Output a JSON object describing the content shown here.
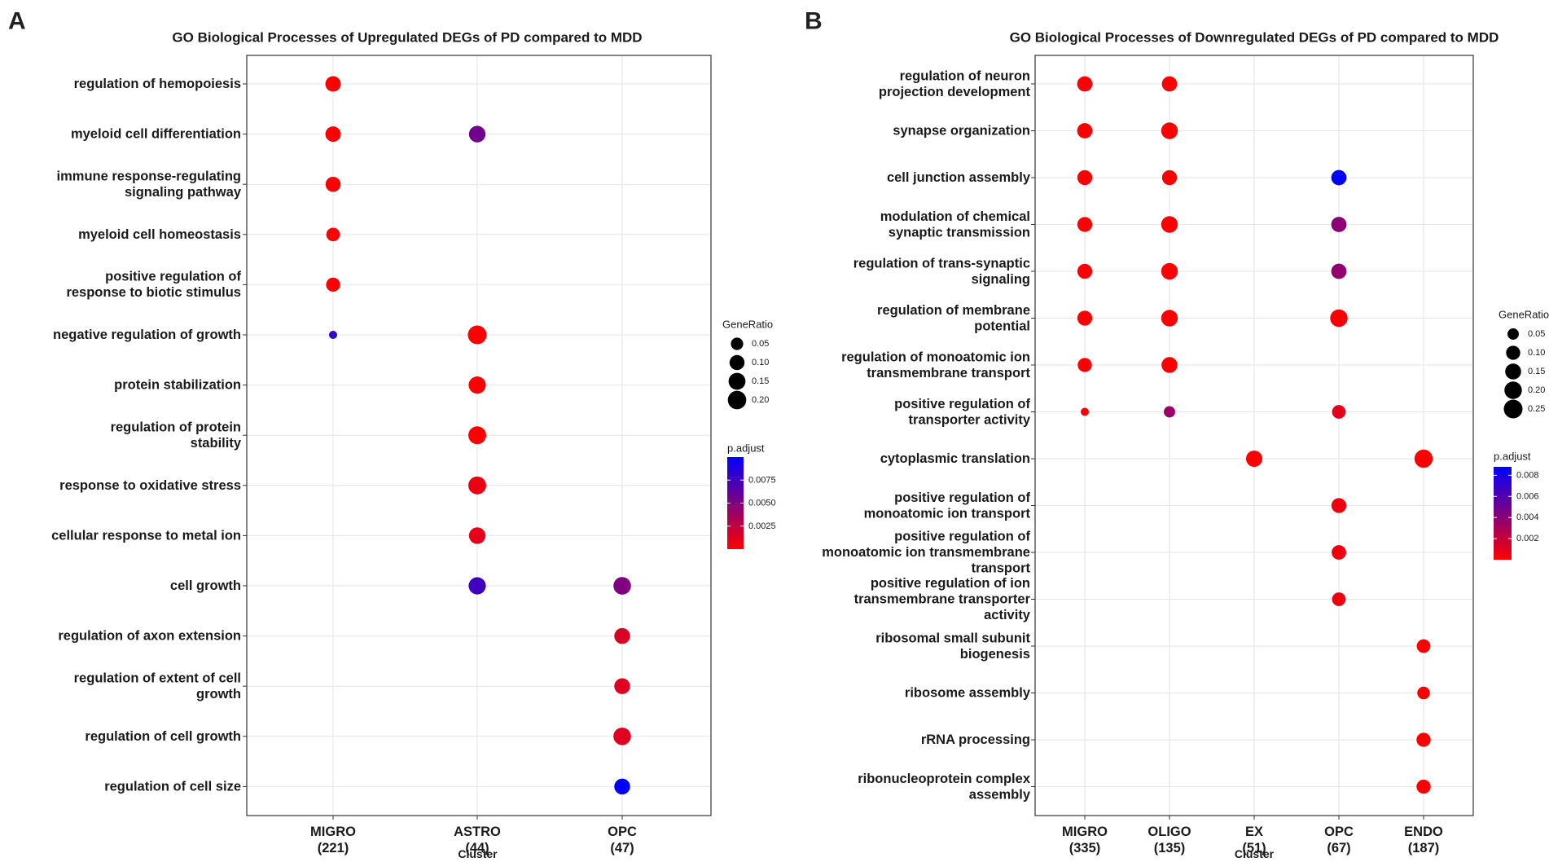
{
  "chart_data": [
    {
      "panel_label": "A",
      "type": "scatter",
      "subtype": "dotplot",
      "title": "GO Biological Processes of Upregulated DEGs of PD compared to MDD",
      "xlabel": "Cluster",
      "ylabel": "",
      "clusters": [
        {
          "name": "MIGRO",
          "count": "(221)"
        },
        {
          "name": "ASTRO",
          "count": "(44)"
        },
        {
          "name": "OPC",
          "count": "(47)"
        }
      ],
      "terms": [
        [
          "regulation of hemopoiesis"
        ],
        [
          "myeloid cell differentiation"
        ],
        [
          "immune response-regulating",
          "signaling pathway"
        ],
        [
          "myeloid cell homeostasis"
        ],
        [
          "positive regulation of",
          "response to biotic stimulus"
        ],
        [
          "negative regulation of growth"
        ],
        [
          "protein stabilization"
        ],
        [
          "regulation of protein",
          "stability"
        ],
        [
          "response to oxidative stress"
        ],
        [
          "cellular response to metal ion"
        ],
        [
          "cell growth"
        ],
        [
          "regulation of axon extension"
        ],
        [
          "regulation of extent of cell",
          "growth"
        ],
        [
          "regulation of cell growth"
        ],
        [
          "regulation of cell size"
        ]
      ],
      "points": [
        {
          "term": 0,
          "cluster": 0,
          "gene_ratio": 0.11,
          "p_adjust": 0.0001
        },
        {
          "term": 1,
          "cluster": 0,
          "gene_ratio": 0.11,
          "p_adjust": 0.0001
        },
        {
          "term": 1,
          "cluster": 1,
          "gene_ratio": 0.14,
          "p_adjust": 0.0055
        },
        {
          "term": 2,
          "cluster": 0,
          "gene_ratio": 0.1,
          "p_adjust": 0.0001
        },
        {
          "term": 3,
          "cluster": 0,
          "gene_ratio": 0.07,
          "p_adjust": 0.0001
        },
        {
          "term": 4,
          "cluster": 0,
          "gene_ratio": 0.08,
          "p_adjust": 0.0001
        },
        {
          "term": 5,
          "cluster": 0,
          "gene_ratio": 0.02,
          "p_adjust": 0.008
        },
        {
          "term": 5,
          "cluster": 1,
          "gene_ratio": 0.21,
          "p_adjust": 0.0001
        },
        {
          "term": 6,
          "cluster": 1,
          "gene_ratio": 0.16,
          "p_adjust": 0.0001
        },
        {
          "term": 7,
          "cluster": 1,
          "gene_ratio": 0.18,
          "p_adjust": 0.0001
        },
        {
          "term": 8,
          "cluster": 1,
          "gene_ratio": 0.18,
          "p_adjust": 0.0008
        },
        {
          "term": 9,
          "cluster": 1,
          "gene_ratio": 0.14,
          "p_adjust": 0.001
        },
        {
          "term": 10,
          "cluster": 1,
          "gene_ratio": 0.16,
          "p_adjust": 0.0075
        },
        {
          "term": 10,
          "cluster": 2,
          "gene_ratio": 0.17,
          "p_adjust": 0.005
        },
        {
          "term": 11,
          "cluster": 2,
          "gene_ratio": 0.12,
          "p_adjust": 0.0015
        },
        {
          "term": 12,
          "cluster": 2,
          "gene_ratio": 0.12,
          "p_adjust": 0.0012
        },
        {
          "term": 13,
          "cluster": 2,
          "gene_ratio": 0.17,
          "p_adjust": 0.0012
        },
        {
          "term": 14,
          "cluster": 2,
          "gene_ratio": 0.12,
          "p_adjust": 0.01
        }
      ],
      "size_legend": {
        "title": "GeneRatio",
        "values": [
          0.05,
          0.1,
          0.15,
          0.2
        ],
        "labels": [
          "0.05",
          "0.10",
          "0.15",
          "0.20"
        ]
      },
      "color_legend": {
        "title": "p.adjust",
        "min": 0.0,
        "max": 0.01,
        "ticks": [
          0.0025,
          0.005,
          0.0075
        ],
        "labels": [
          "0.0025",
          "0.0050",
          "0.0075"
        ],
        "low_color": "#ff0000",
        "high_color": "#0000ff"
      },
      "size_range": {
        "min_ratio": 0.02,
        "max_ratio": 0.21
      }
    },
    {
      "panel_label": "B",
      "type": "scatter",
      "subtype": "dotplot",
      "title": "GO Biological Processes of Downregulated DEGs of PD compared to MDD",
      "xlabel": "Cluster",
      "ylabel": "",
      "clusters": [
        {
          "name": "MIGRO",
          "count": "(335)"
        },
        {
          "name": "OLIGO",
          "count": "(135)"
        },
        {
          "name": "EX",
          "count": "(51)"
        },
        {
          "name": "OPC",
          "count": "(67)"
        },
        {
          "name": "ENDO",
          "count": "(187)"
        }
      ],
      "terms": [
        [
          "regulation of neuron",
          "projection development"
        ],
        [
          "synapse organization"
        ],
        [
          "cell junction assembly"
        ],
        [
          "modulation of chemical",
          "synaptic transmission"
        ],
        [
          "regulation of trans-synaptic",
          "signaling"
        ],
        [
          "regulation of membrane",
          "potential"
        ],
        [
          "regulation of monoatomic ion",
          "transmembrane transport"
        ],
        [
          "positive regulation of",
          "transporter activity"
        ],
        [
          "cytoplasmic translation"
        ],
        [
          "positive regulation of",
          "monoatomic ion transport"
        ],
        [
          "positive regulation of",
          "monoatomic ion transmembrane",
          "transport"
        ],
        [
          "positive regulation of ion",
          "transmembrane transporter",
          "activity"
        ],
        [
          "ribosomal small subunit",
          "biogenesis"
        ],
        [
          "ribosome assembly"
        ],
        [
          "rRNA processing"
        ],
        [
          "ribonucleoprotein complex",
          "assembly"
        ]
      ],
      "points": [
        {
          "term": 0,
          "cluster": 0,
          "gene_ratio": 0.13,
          "p_adjust": 0.0001
        },
        {
          "term": 0,
          "cluster": 1,
          "gene_ratio": 0.13,
          "p_adjust": 0.0001
        },
        {
          "term": 1,
          "cluster": 0,
          "gene_ratio": 0.13,
          "p_adjust": 0.0001
        },
        {
          "term": 1,
          "cluster": 1,
          "gene_ratio": 0.17,
          "p_adjust": 0.0001
        },
        {
          "term": 2,
          "cluster": 0,
          "gene_ratio": 0.12,
          "p_adjust": 0.0001
        },
        {
          "term": 2,
          "cluster": 1,
          "gene_ratio": 0.12,
          "p_adjust": 0.0001
        },
        {
          "term": 2,
          "cluster": 3,
          "gene_ratio": 0.13,
          "p_adjust": 0.0088
        },
        {
          "term": 3,
          "cluster": 0,
          "gene_ratio": 0.12,
          "p_adjust": 0.0001
        },
        {
          "term": 3,
          "cluster": 1,
          "gene_ratio": 0.17,
          "p_adjust": 0.0001
        },
        {
          "term": 3,
          "cluster": 3,
          "gene_ratio": 0.13,
          "p_adjust": 0.004
        },
        {
          "term": 4,
          "cluster": 0,
          "gene_ratio": 0.12,
          "p_adjust": 0.0001
        },
        {
          "term": 4,
          "cluster": 1,
          "gene_ratio": 0.17,
          "p_adjust": 0.0001
        },
        {
          "term": 4,
          "cluster": 3,
          "gene_ratio": 0.13,
          "p_adjust": 0.0038
        },
        {
          "term": 5,
          "cluster": 0,
          "gene_ratio": 0.12,
          "p_adjust": 0.0001
        },
        {
          "term": 5,
          "cluster": 1,
          "gene_ratio": 0.17,
          "p_adjust": 0.0001
        },
        {
          "term": 5,
          "cluster": 3,
          "gene_ratio": 0.2,
          "p_adjust": 0.0002
        },
        {
          "term": 6,
          "cluster": 0,
          "gene_ratio": 0.1,
          "p_adjust": 0.0001
        },
        {
          "term": 6,
          "cluster": 1,
          "gene_ratio": 0.15,
          "p_adjust": 0.0001
        },
        {
          "term": 7,
          "cluster": 0,
          "gene_ratio": 0.03,
          "p_adjust": 0.0001
        },
        {
          "term": 7,
          "cluster": 1,
          "gene_ratio": 0.05,
          "p_adjust": 0.0035
        },
        {
          "term": 7,
          "cluster": 3,
          "gene_ratio": 0.09,
          "p_adjust": 0.001
        },
        {
          "term": 8,
          "cluster": 2,
          "gene_ratio": 0.16,
          "p_adjust": 0.0001
        },
        {
          "term": 8,
          "cluster": 4,
          "gene_ratio": 0.23,
          "p_adjust": 0.0001
        },
        {
          "term": 9,
          "cluster": 3,
          "gene_ratio": 0.12,
          "p_adjust": 0.0006
        },
        {
          "term": 10,
          "cluster": 3,
          "gene_ratio": 0.11,
          "p_adjust": 0.0006
        },
        {
          "term": 11,
          "cluster": 3,
          "gene_ratio": 0.09,
          "p_adjust": 0.0006
        },
        {
          "term": 12,
          "cluster": 4,
          "gene_ratio": 0.09,
          "p_adjust": 0.0001
        },
        {
          "term": 13,
          "cluster": 4,
          "gene_ratio": 0.07,
          "p_adjust": 0.0001
        },
        {
          "term": 14,
          "cluster": 4,
          "gene_ratio": 0.1,
          "p_adjust": 0.0001
        },
        {
          "term": 15,
          "cluster": 4,
          "gene_ratio": 0.1,
          "p_adjust": 0.0001
        }
      ],
      "size_legend": {
        "title": "GeneRatio",
        "values": [
          0.05,
          0.1,
          0.15,
          0.2,
          0.25
        ],
        "labels": [
          "0.05",
          "0.10",
          "0.15",
          "0.20",
          "0.25"
        ]
      },
      "color_legend": {
        "title": "p.adjust",
        "min": 0.0,
        "max": 0.0088,
        "ticks": [
          0.002,
          0.004,
          0.006,
          0.008
        ],
        "labels": [
          "0.002",
          "0.004",
          "0.006",
          "0.008"
        ],
        "low_color": "#ff0000",
        "high_color": "#0000ff"
      },
      "size_range": {
        "min_ratio": 0.03,
        "max_ratio": 0.25
      }
    }
  ]
}
